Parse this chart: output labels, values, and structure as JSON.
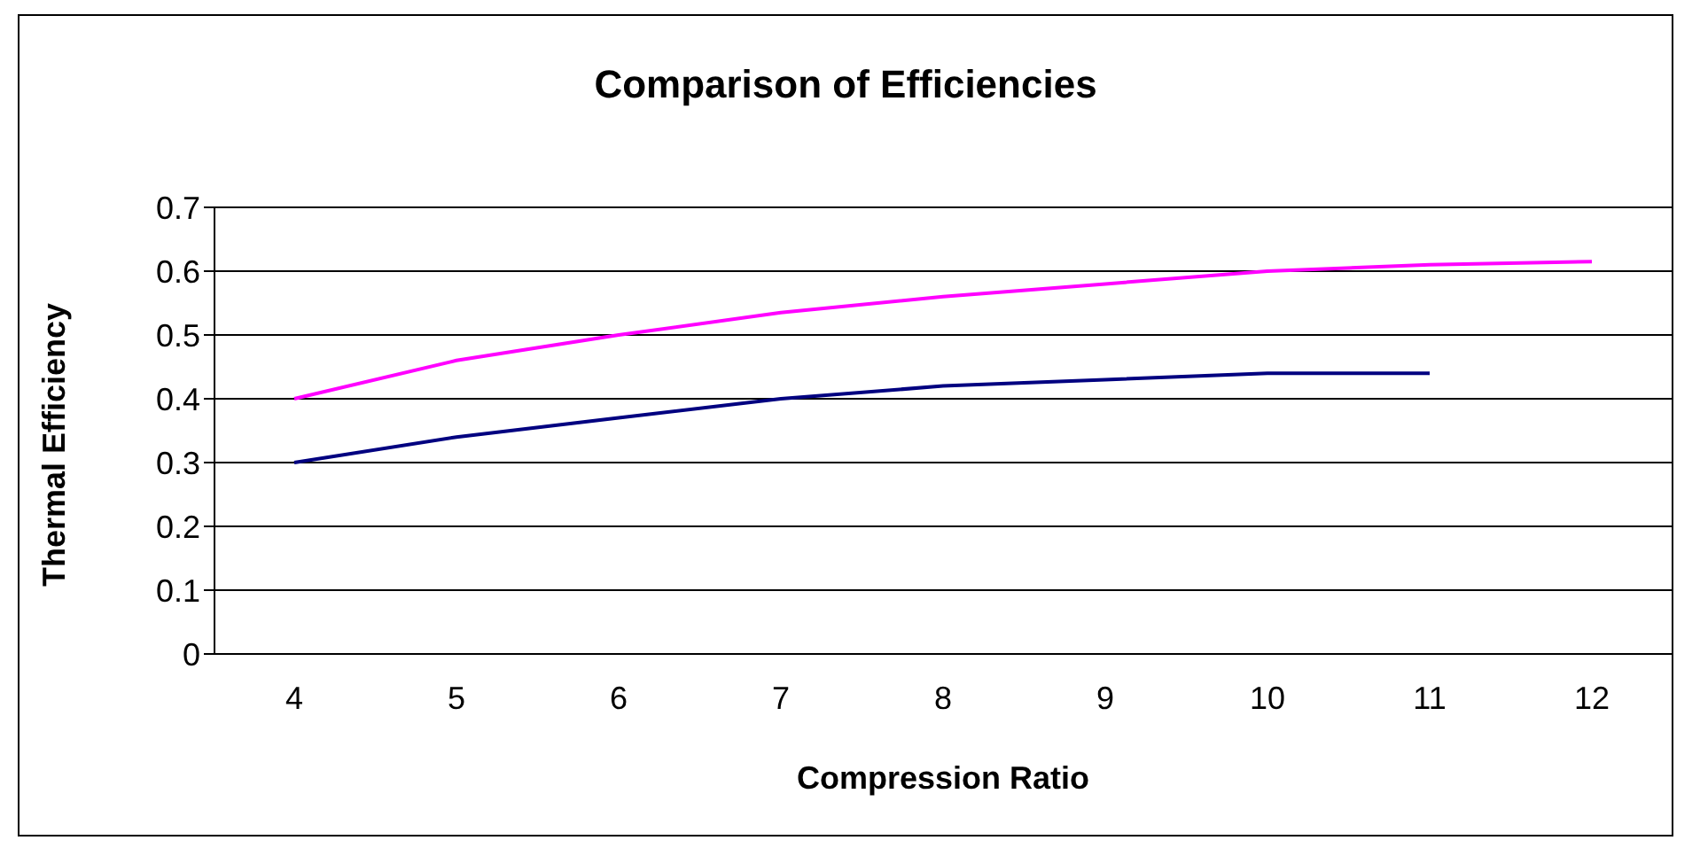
{
  "chart_data": {
    "type": "line",
    "title": "Comparison of Efficiencies",
    "xlabel": "Compression Ratio",
    "ylabel": "Thermal Efficiency",
    "categories": [
      "4",
      "5",
      "6",
      "7",
      "8",
      "9",
      "10",
      "11",
      "12"
    ],
    "series": [
      {
        "color": "#ff00ff",
        "values": [
          0.4,
          0.46,
          0.5,
          0.535,
          0.56,
          0.58,
          0.6,
          0.61,
          0.615
        ]
      },
      {
        "color": "#000080",
        "values": [
          0.3,
          0.34,
          0.37,
          0.4,
          0.42,
          0.43,
          0.44,
          0.44,
          null
        ]
      }
    ],
    "ylim": [
      0,
      0.7
    ],
    "yticks": [
      0,
      0.1,
      0.2,
      0.3,
      0.4,
      0.5,
      0.6,
      0.7
    ],
    "grid": "y",
    "marker": "none",
    "line_style": "solid"
  }
}
